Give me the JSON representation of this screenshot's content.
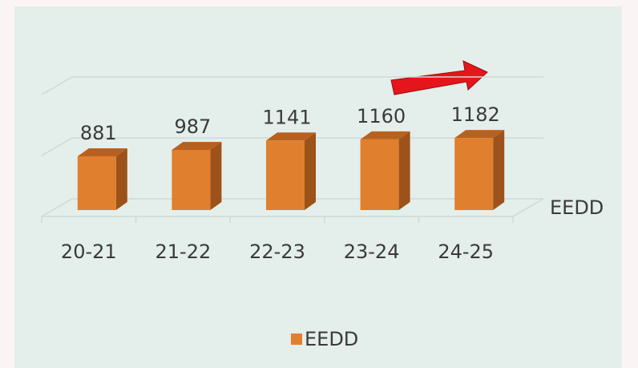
{
  "chart_data": {
    "type": "bar",
    "categories": [
      "20-21",
      "21-22",
      "22-23",
      "23-24",
      "24-25"
    ],
    "series": [
      {
        "name": "EEDD",
        "color": "#e07f2e",
        "values": [
          881,
          987,
          1141,
          1160,
          1182
        ]
      }
    ],
    "z_axis_label": "EEDD",
    "ylim": [
      0,
      2000
    ],
    "yticks": [
      0,
      1000,
      2000
    ],
    "grid": true,
    "legend": "bottom"
  }
}
